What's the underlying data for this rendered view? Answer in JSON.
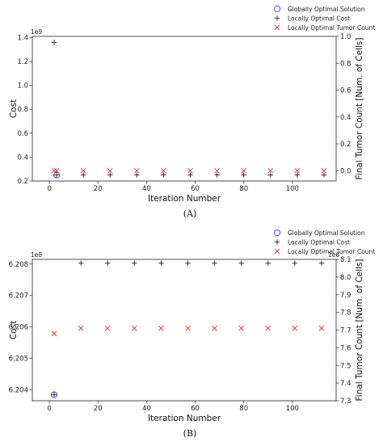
{
  "chart_data": [
    {
      "panel": "(A)",
      "type": "scatter",
      "xlabel": "Iteration Number",
      "ylabel": "Cost",
      "y2label": "Final Tumor Count [Num. of Cells]",
      "y_multiplier": "1e9",
      "xlim": [
        -7,
        118
      ],
      "ylim": [
        0.2,
        1.41
      ],
      "y2lim": [
        -0.0763,
        1.0
      ],
      "xticks": [
        0,
        20,
        40,
        60,
        80,
        100
      ],
      "yticks": [
        0.2,
        0.4,
        0.6,
        0.8,
        1.0,
        1.2,
        1.4
      ],
      "yticklabels": [
        "0.2",
        "0.4",
        "0.6",
        "0.8",
        "1.0",
        "1.2",
        "1.4"
      ],
      "y2ticks": [
        0.0,
        0.2,
        0.4,
        0.6,
        0.8,
        1.0
      ],
      "y2ticklabels": [
        "0.0",
        "0.2",
        "0.4",
        "0.6",
        "0.8",
        "1.0"
      ],
      "legend_position": "top-right, outside",
      "series": [
        {
          "name": "Globally Optimal Solution",
          "marker": "circle",
          "color": "#3a3ad8",
          "axis": "left",
          "x": [
            3
          ],
          "y": [
            0.25
          ]
        },
        {
          "name": "Locally Optimal Cost",
          "marker": "plus",
          "color": "#222222",
          "axis": "left",
          "x": [
            2,
            3,
            14,
            25,
            36,
            47,
            58,
            69,
            80,
            91,
            102,
            113
          ],
          "y": [
            1.36,
            0.25,
            0.25,
            0.25,
            0.25,
            0.25,
            0.25,
            0.25,
            0.25,
            0.25,
            0.25,
            0.25
          ]
        },
        {
          "name": "Locally Optimal Tumor Count",
          "marker": "x",
          "color": "#e03030",
          "axis": "right",
          "x": [
            2,
            3,
            14,
            25,
            36,
            47,
            58,
            69,
            80,
            91,
            102,
            113
          ],
          "y": [
            0.0,
            0.0,
            0.0,
            0.0,
            0.0,
            0.0,
            0.0,
            0.0,
            0.0,
            0.0,
            0.0,
            0.0
          ]
        }
      ]
    },
    {
      "panel": "(B)",
      "type": "scatter",
      "xlabel": "Iteration Number",
      "ylabel": "Cost",
      "y2label": "Final Tumor Count [Num. of Cells]",
      "y_multiplier": "1e8",
      "y2_multiplier": "1e6",
      "xlim": [
        -7,
        118
      ],
      "ylim": [
        6.20365,
        6.20815
      ],
      "y2lim": [
        7.3,
        8.1
      ],
      "xticks": [
        0,
        20,
        40,
        60,
        80,
        100
      ],
      "yticks": [
        6.204,
        6.205,
        6.206,
        6.207,
        6.208
      ],
      "yticklabels": [
        "6.204",
        "6.205",
        "6.206",
        "6.207",
        "6.208"
      ],
      "y2ticks": [
        7.3,
        7.4,
        7.5,
        7.6,
        7.7,
        7.8,
        7.9,
        8.0,
        8.1
      ],
      "y2ticklabels": [
        "7.3",
        "7.4",
        "7.5",
        "7.6",
        "7.7",
        "7.8",
        "7.9",
        "8.0",
        "8.1"
      ],
      "legend_position": "top-right, outside",
      "series": [
        {
          "name": "Globally Optimal Solution",
          "marker": "circle",
          "color": "#3a3ad8",
          "axis": "left",
          "x": [
            2
          ],
          "y": [
            6.20384
          ]
        },
        {
          "name": "Locally Optimal Cost",
          "marker": "plus",
          "color": "#222222",
          "axis": "left",
          "x": [
            2,
            13,
            24,
            35,
            46,
            57,
            68,
            79,
            90,
            101,
            112
          ],
          "y": [
            6.20384,
            6.20803,
            6.20803,
            6.20803,
            6.20803,
            6.20803,
            6.20803,
            6.20803,
            6.20803,
            6.20803,
            6.20803
          ]
        },
        {
          "name": "Locally Optimal Tumor Count",
          "marker": "x",
          "color": "#e03030",
          "axis": "right",
          "x": [
            2,
            13,
            24,
            35,
            46,
            57,
            68,
            79,
            90,
            101,
            112
          ],
          "y": [
            7.68,
            7.71,
            7.71,
            7.71,
            7.71,
            7.71,
            7.71,
            7.71,
            7.71,
            7.71,
            7.71
          ]
        }
      ]
    }
  ]
}
